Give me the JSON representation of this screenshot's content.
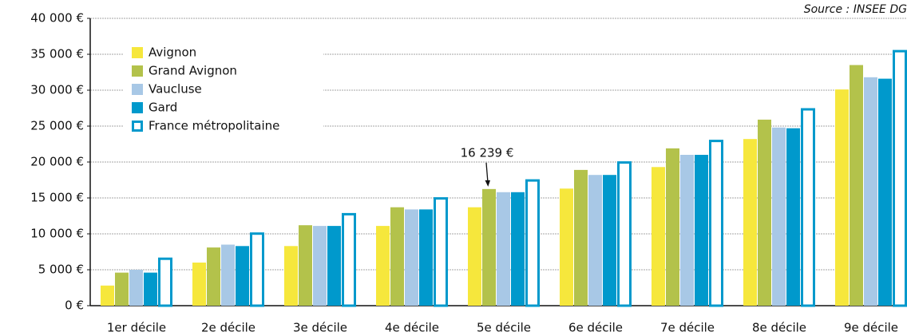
{
  "chart_data": {
    "type": "bar",
    "source": "Source : INSEE DG",
    "categories": [
      "1er décile",
      "2e décile",
      "3e décile",
      "4e décile",
      "5e décile",
      "6e décile",
      "7e décile",
      "8e décile",
      "9e décile"
    ],
    "series": [
      {
        "name": "Avignon",
        "color": "#f6e73c",
        "values": [
          2800,
          6000,
          8300,
          11100,
          13700,
          16300,
          19300,
          23200,
          30100
        ]
      },
      {
        "name": "Grand Avignon",
        "color": "#b3c24b",
        "values": [
          4600,
          8100,
          11200,
          13700,
          16239,
          18900,
          21900,
          25900,
          33500
        ],
        "value_labels": [
          null,
          null,
          null,
          null,
          "16 239 €",
          null,
          null,
          null,
          null
        ]
      },
      {
        "name": "Vaucluse",
        "color": "#a8c8e6",
        "values": [
          5000,
          8500,
          11100,
          13400,
          15800,
          18200,
          21000,
          24800,
          31800
        ]
      },
      {
        "name": "Gard",
        "color": "#0099cc",
        "values": [
          4600,
          8300,
          11100,
          13400,
          15800,
          18200,
          21000,
          24700,
          31600
        ]
      },
      {
        "name": "France métropolitaine",
        "color": "#0099cc",
        "outline": true,
        "values": [
          6700,
          10200,
          12900,
          15100,
          17600,
          20100,
          23100,
          27500,
          35600
        ]
      }
    ],
    "ylim": [
      0,
      40000
    ],
    "yticks": [
      {
        "value": 0,
        "label": "0 €"
      },
      {
        "value": 5000,
        "label": "5 000 €"
      },
      {
        "value": 10000,
        "label": "10 000 €"
      },
      {
        "value": 15000,
        "label": "15 000 €"
      },
      {
        "value": 20000,
        "label": "20 000 €"
      },
      {
        "value": 25000,
        "label": "25 000 €"
      },
      {
        "value": 30000,
        "label": "30 000 €"
      },
      {
        "value": 35000,
        "label": "35 000 €"
      },
      {
        "value": 40000,
        "label": "40 000 €"
      }
    ],
    "grid": true,
    "legend": "upper left"
  }
}
